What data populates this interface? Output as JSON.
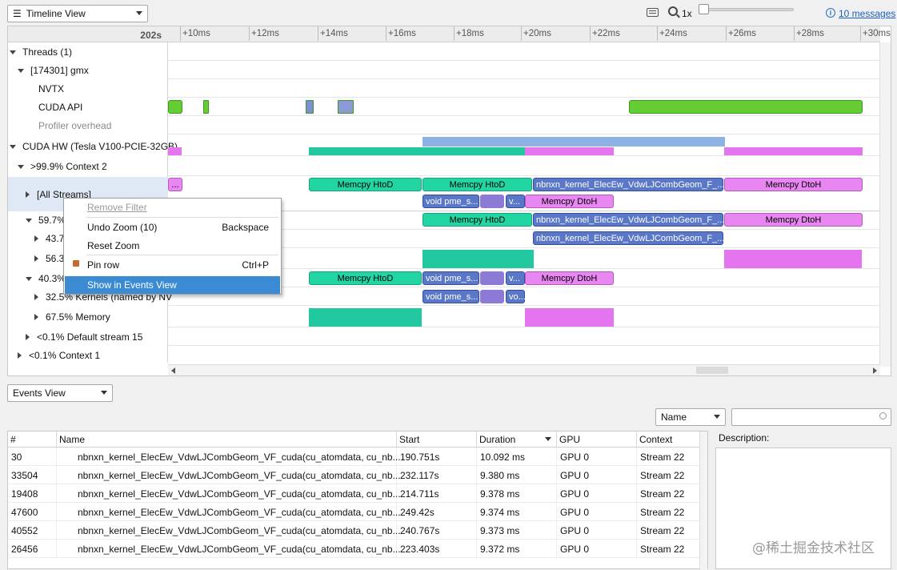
{
  "toolbar": {
    "view_select": "Timeline View",
    "zoom_level": "1x",
    "messages_link": "10 messages"
  },
  "timeline": {
    "ruler_left": "202s",
    "ruler_ticks": [
      "+10ms",
      "+12ms",
      "+14ms",
      "+16ms",
      "+18ms",
      "+20ms",
      "+22ms",
      "+24ms",
      "+26ms",
      "+28ms",
      "+30ms"
    ],
    "tree": {
      "threads": "Threads (1)",
      "process": "[174301] gmx",
      "nvtx": "NVTX",
      "cuda_api": "CUDA API",
      "profiler_overhead": "Profiler overhead",
      "cuda_hw": "CUDA HW (Tesla V100-PCIE-32GB)",
      "context2": ">99.9% Context 2",
      "all_streams": "[All Streams]",
      "s1": "59.7%",
      "s1a": "43.7",
      "s1b": "56.3",
      "s2": "40.3%",
      "s2a": "32.5% Kernels (named by NV",
      "s2b": "67.5% Memory",
      "default_stream": "<0.1% Default stream 15",
      "context1": "<0.1% Context 1"
    },
    "bars": {
      "memcpy_htod": "Memcpy HtoD",
      "memcpy_dtoh": "Memcpy DtoH",
      "nbnxn_kernel": "nbnxn_kernel_ElecEw_VdwLJCombGeom_F_...",
      "void_pme": "void pme_s...",
      "v_short": "v...",
      "vo_short": "vo..."
    }
  },
  "context_menu": {
    "remove_filter": "Remove Filter",
    "undo_zoom": "Undo Zoom (10)",
    "undo_zoom_shortcut": "Backspace",
    "reset_zoom": "Reset Zoom",
    "pin_row": "Pin row",
    "pin_row_shortcut": "Ctrl+P",
    "show_in_events": "Show in Events View"
  },
  "events": {
    "view_select": "Events View",
    "filter_field_select": "Name",
    "search_placeholder": "",
    "description_label": "Description:",
    "columns": [
      "#",
      "Name",
      "Start",
      "Duration",
      "GPU",
      "Context"
    ],
    "sorted_column": "Duration",
    "rows": [
      {
        "id": "30",
        "name": "nbnxn_kernel_ElecEw_VdwLJCombGeom_VF_cuda(cu_atomdata, cu_nb...",
        "start": "190.751s",
        "duration": "10.092 ms",
        "gpu": "GPU 0",
        "context": "Stream 22"
      },
      {
        "id": "33504",
        "name": "nbnxn_kernel_ElecEw_VdwLJCombGeom_VF_cuda(cu_atomdata, cu_nb...",
        "start": "232.117s",
        "duration": "9.380 ms",
        "gpu": "GPU 0",
        "context": "Stream 22"
      },
      {
        "id": "19408",
        "name": "nbnxn_kernel_ElecEw_VdwLJCombGeom_VF_cuda(cu_atomdata, cu_nb...",
        "start": "214.711s",
        "duration": "9.378 ms",
        "gpu": "GPU 0",
        "context": "Stream 22"
      },
      {
        "id": "47600",
        "name": "nbnxn_kernel_ElecEw_VdwLJCombGeom_VF_cuda(cu_atomdata, cu_nb...",
        "start": "249.42s",
        "duration": "9.374 ms",
        "gpu": "GPU 0",
        "context": "Stream 22"
      },
      {
        "id": "40552",
        "name": "nbnxn_kernel_ElecEw_VdwLJCombGeom_VF_cuda(cu_atomdata, cu_nb...",
        "start": "240.767s",
        "duration": "9.373 ms",
        "gpu": "GPU 0",
        "context": "Stream 22"
      },
      {
        "id": "26456",
        "name": "nbnxn_kernel_ElecEw_VdwLJCombGeom_VF_cuda(cu_atomdata, cu_nb...",
        "start": "223.403s",
        "duration": "9.372 ms",
        "gpu": "GPU 0",
        "context": "Stream 22"
      }
    ]
  },
  "watermark": "@稀土掘金技术社区"
}
